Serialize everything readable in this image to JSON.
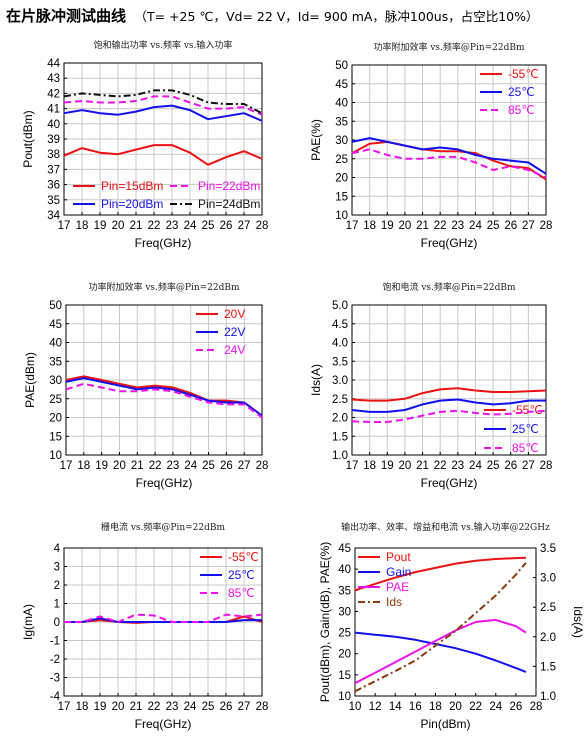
{
  "header": {
    "title": "在片脉冲测试曲线",
    "conditions": "（T= +25 ℃，Vd= 22 V，Id= 900 mA，脉冲100us，占空比10%）"
  },
  "colors": {
    "red": "#ee1111",
    "blue": "#1111ee",
    "magenta": "#ee11ee",
    "black": "#111111",
    "brown": "#8b3a0e"
  },
  "chart_data": [
    {
      "id": "c1",
      "type": "line",
      "title": "饱和输出功率 vs.频率 vs.输入功率",
      "xlabel": "Freq(GHz)",
      "ylabel": "Pout(dBm)",
      "xlim": [
        17,
        28
      ],
      "ylim": [
        34,
        44
      ],
      "x_ticks": [
        17,
        18,
        19,
        20,
        21,
        22,
        23,
        24,
        25,
        26,
        27,
        28
      ],
      "y_ticks": [
        34,
        35,
        36,
        37,
        38,
        39,
        40,
        41,
        42,
        43,
        44
      ],
      "grid": true,
      "legend_position": "bottom",
      "x": [
        17,
        18,
        19,
        20,
        21,
        22,
        23,
        24,
        25,
        26,
        27,
        28
      ],
      "series": [
        {
          "name": "Pin=15dBm",
          "color": "#ee1111",
          "dash": "solid",
          "values": [
            37.9,
            38.4,
            38.1,
            38.0,
            38.3,
            38.6,
            38.6,
            38.1,
            37.3,
            37.8,
            38.2,
            37.7
          ]
        },
        {
          "name": "Pin=20dBm",
          "color": "#1111ee",
          "dash": "solid",
          "values": [
            40.7,
            40.9,
            40.7,
            40.6,
            40.8,
            41.1,
            41.2,
            40.9,
            40.3,
            40.5,
            40.7,
            40.2
          ]
        },
        {
          "name": "Pin=22dBm",
          "color": "#ee11ee",
          "dash": "dash",
          "values": [
            41.4,
            41.5,
            41.4,
            41.4,
            41.5,
            41.8,
            41.8,
            41.4,
            41.0,
            41.0,
            41.1,
            40.6
          ]
        },
        {
          "name": "Pin=24dBm",
          "color": "#111111",
          "dash": "dashdot",
          "values": [
            41.8,
            42.0,
            41.9,
            41.8,
            41.9,
            42.2,
            42.2,
            41.9,
            41.4,
            41.3,
            41.3,
            40.7
          ]
        }
      ]
    },
    {
      "id": "c2",
      "type": "line",
      "title": "功率附加效率 vs.频率@Pin=22dBm",
      "xlabel": "Freq(GHz)",
      "ylabel": "PAE(%)",
      "xlim": [
        17,
        28
      ],
      "ylim": [
        10,
        50
      ],
      "x_ticks": [
        17,
        18,
        19,
        20,
        21,
        22,
        23,
        24,
        25,
        26,
        27,
        28
      ],
      "y_ticks": [
        10,
        15,
        20,
        25,
        30,
        35,
        40,
        45,
        50
      ],
      "grid": true,
      "legend_position": "top-right",
      "x": [
        17,
        18,
        19,
        20,
        21,
        22,
        23,
        24,
        25,
        26,
        27,
        28
      ],
      "series": [
        {
          "name": "-55℃",
          "color": "#ee1111",
          "dash": "solid",
          "values": [
            26.5,
            29.0,
            29.5,
            28.5,
            27.5,
            27.0,
            27.0,
            26.5,
            24.5,
            23.0,
            22.5,
            19.5
          ]
        },
        {
          "name": "25℃",
          "color": "#1111ee",
          "dash": "solid",
          "values": [
            29.5,
            30.5,
            29.5,
            28.5,
            27.5,
            28.0,
            27.5,
            26.0,
            25.0,
            24.5,
            24.0,
            21.0
          ]
        },
        {
          "name": "85℃",
          "color": "#ee11ee",
          "dash": "dash",
          "values": [
            26.5,
            27.5,
            26.0,
            25.0,
            25.0,
            25.5,
            25.5,
            24.0,
            22.0,
            23.0,
            22.0,
            20.0
          ]
        }
      ]
    },
    {
      "id": "c3",
      "type": "line",
      "title": "功率附加效率 vs.频率@Pin=22dBm",
      "xlabel": "Freq(GHz)",
      "ylabel": "PAE(dBm)",
      "xlim": [
        17,
        28
      ],
      "ylim": [
        10,
        50
      ],
      "x_ticks": [
        17,
        18,
        19,
        20,
        21,
        22,
        23,
        24,
        25,
        26,
        27,
        28
      ],
      "y_ticks": [
        10,
        15,
        20,
        25,
        30,
        35,
        40,
        45,
        50
      ],
      "grid": true,
      "legend_position": "top-right",
      "x": [
        17,
        18,
        19,
        20,
        21,
        22,
        23,
        24,
        25,
        26,
        27,
        28
      ],
      "series": [
        {
          "name": "20V",
          "color": "#ee1111",
          "dash": "solid",
          "values": [
            30.0,
            31.0,
            30.0,
            29.0,
            28.0,
            28.5,
            28.0,
            26.5,
            24.5,
            24.5,
            24.0,
            20.5
          ]
        },
        {
          "name": "22V",
          "color": "#1111ee",
          "dash": "solid",
          "values": [
            29.5,
            30.5,
            29.5,
            28.5,
            27.5,
            28.0,
            27.5,
            26.0,
            24.5,
            24.0,
            24.0,
            20.5
          ]
        },
        {
          "name": "24V",
          "color": "#ee11ee",
          "dash": "dash",
          "values": [
            27.5,
            29.0,
            28.0,
            27.0,
            27.0,
            27.5,
            27.0,
            25.5,
            24.0,
            23.5,
            23.5,
            20.0
          ]
        }
      ]
    },
    {
      "id": "c4",
      "type": "line",
      "title": "饱和电流 vs.频率@Pin=22dBm",
      "xlabel": "Freq(GHz)",
      "ylabel": "Ids(A)",
      "xlim": [
        17,
        28
      ],
      "ylim": [
        1.0,
        5.0
      ],
      "x_ticks": [
        17,
        18,
        19,
        20,
        21,
        22,
        23,
        24,
        25,
        26,
        27,
        28
      ],
      "y_ticks": [
        "1.0",
        "1.5",
        "2.0",
        "2.5",
        "3.0",
        "3.5",
        "4.0",
        "4.5",
        "5.0"
      ],
      "grid": true,
      "legend_position": "bottom-right",
      "x": [
        17,
        18,
        19,
        20,
        21,
        22,
        23,
        24,
        25,
        26,
        27,
        28
      ],
      "series": [
        {
          "name": "-55℃",
          "color": "#ee1111",
          "dash": "solid",
          "values": [
            2.48,
            2.45,
            2.45,
            2.5,
            2.65,
            2.75,
            2.78,
            2.72,
            2.68,
            2.68,
            2.7,
            2.72
          ]
        },
        {
          "name": "25℃",
          "color": "#1111ee",
          "dash": "solid",
          "values": [
            2.2,
            2.15,
            2.15,
            2.2,
            2.35,
            2.45,
            2.48,
            2.4,
            2.35,
            2.38,
            2.45,
            2.45
          ]
        },
        {
          "name": "85℃",
          "color": "#ee11ee",
          "dash": "dash",
          "values": [
            1.9,
            1.88,
            1.88,
            1.95,
            2.05,
            2.15,
            2.18,
            2.12,
            2.08,
            2.1,
            2.15,
            2.18
          ]
        }
      ]
    },
    {
      "id": "c5",
      "type": "line",
      "title": "栅电流 vs.频率@Pin=22dBm",
      "xlabel": "Freq(GHz)",
      "ylabel": "Ig(mA)",
      "xlim": [
        17,
        28
      ],
      "ylim": [
        -4,
        4
      ],
      "x_ticks": [
        17,
        18,
        19,
        20,
        21,
        22,
        23,
        24,
        25,
        26,
        27,
        28
      ],
      "y_ticks": [
        -4,
        -3,
        -2,
        -1,
        0,
        1,
        2,
        3,
        4
      ],
      "grid": true,
      "legend_position": "top-right",
      "x": [
        17,
        18,
        19,
        20,
        21,
        22,
        23,
        24,
        25,
        26,
        27,
        28
      ],
      "series": [
        {
          "name": "-55℃",
          "color": "#ee1111",
          "dash": "solid",
          "values": [
            0.0,
            0.0,
            0.1,
            0.0,
            -0.05,
            0.0,
            0.0,
            0.0,
            0.0,
            0.0,
            0.3,
            0.0
          ]
        },
        {
          "name": "25℃",
          "color": "#1111ee",
          "dash": "solid",
          "values": [
            0.0,
            0.0,
            0.2,
            0.0,
            0.0,
            0.0,
            0.0,
            0.0,
            0.0,
            0.0,
            0.1,
            0.1
          ]
        },
        {
          "name": "85℃",
          "color": "#ee11ee",
          "dash": "dash",
          "values": [
            0.0,
            0.0,
            0.3,
            0.0,
            0.4,
            0.35,
            0.0,
            0.0,
            0.0,
            0.4,
            0.3,
            0.4
          ]
        }
      ]
    },
    {
      "id": "c6",
      "type": "line",
      "title": "输出功率、效率、增益和电流 vs.输入功率@22GHz",
      "xlabel": "Pin(dBm)",
      "ylabel": "Pout(dBm), Gain(dB), PAE(%)",
      "y2label": "Ids(A)",
      "xlim": [
        10,
        28
      ],
      "ylim": [
        10,
        45
      ],
      "y2lim": [
        1.0,
        3.5
      ],
      "x_ticks": [
        10,
        12,
        14,
        16,
        18,
        20,
        22,
        24,
        26,
        28
      ],
      "y_ticks": [
        10,
        15,
        20,
        25,
        30,
        35,
        40,
        45
      ],
      "y2_ticks": [
        "1.0",
        "1.5",
        "2.0",
        "2.5",
        "3.0",
        "3.5"
      ],
      "grid": false,
      "legend_position": "top-left",
      "series": [
        {
          "name": "Pout",
          "color": "#ee1111",
          "dash": "solid",
          "axis": "left",
          "x": [
            10,
            12,
            14,
            16,
            18,
            20,
            22,
            24,
            26,
            27
          ],
          "values": [
            35.0,
            36.5,
            38.0,
            39.3,
            40.3,
            41.3,
            42.0,
            42.4,
            42.6,
            42.7
          ]
        },
        {
          "name": "Gain",
          "color": "#1111ee",
          "dash": "solid",
          "axis": "left",
          "x": [
            10,
            12,
            14,
            16,
            18,
            20,
            22,
            24,
            26,
            27
          ],
          "values": [
            25.0,
            24.5,
            24.0,
            23.3,
            22.3,
            21.3,
            20.0,
            18.4,
            16.6,
            15.7
          ]
        },
        {
          "name": "PAE",
          "color": "#ee11ee",
          "dash": "solid",
          "axis": "left",
          "x": [
            10,
            12,
            14,
            16,
            18,
            20,
            22,
            24,
            26,
            27
          ],
          "values": [
            13.0,
            15.5,
            18.0,
            20.5,
            23.0,
            25.5,
            27.5,
            28.0,
            26.5,
            25.0
          ]
        },
        {
          "name": "Ids",
          "color": "#8b3a0e",
          "dash": "dashdot",
          "axis": "right",
          "x": [
            10,
            12,
            14,
            16,
            18,
            20,
            22,
            24,
            26,
            27
          ],
          "values": [
            1.08,
            1.25,
            1.42,
            1.6,
            1.85,
            2.1,
            2.4,
            2.7,
            3.05,
            3.25
          ]
        }
      ]
    }
  ]
}
